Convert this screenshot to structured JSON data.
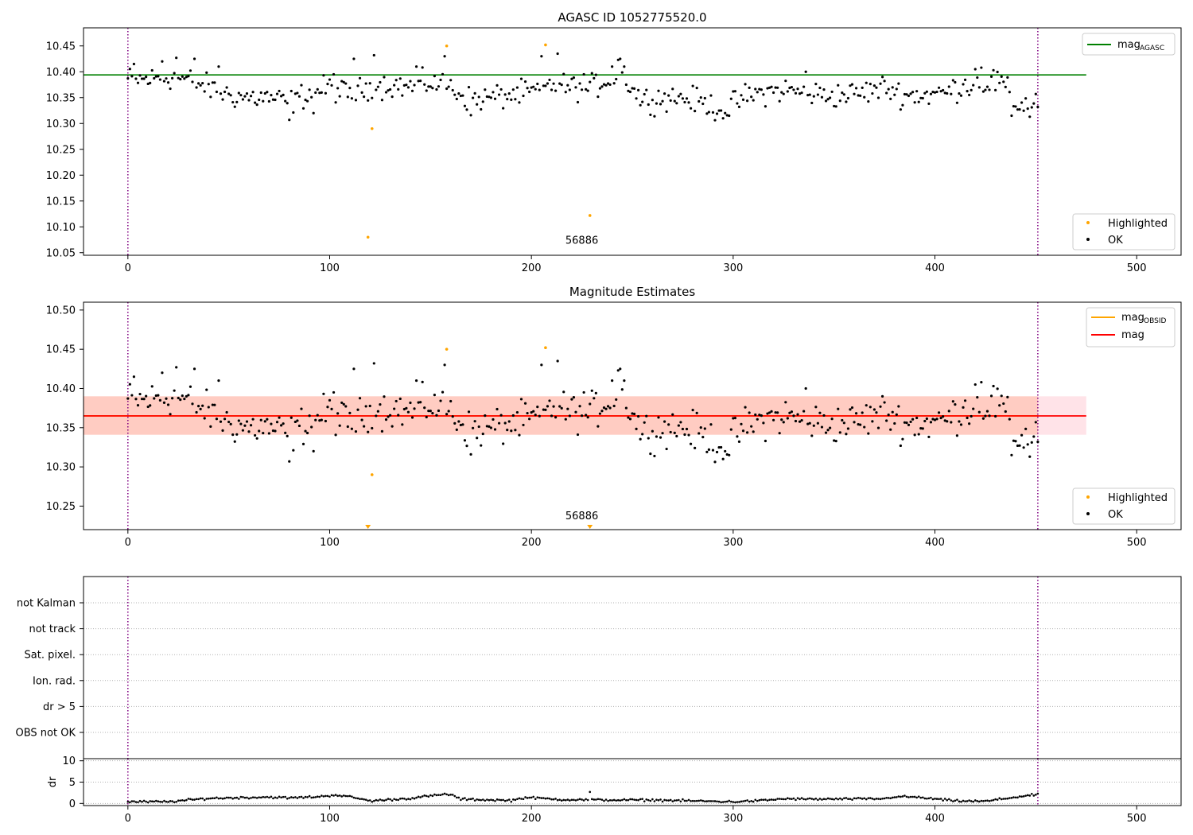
{
  "charts": [
    {
      "type": "scatter",
      "title": "AGASC ID 1052775520.0",
      "xlabel": "",
      "ylabel": "",
      "xlim": [
        -22,
        522
      ],
      "ylim": [
        10.045,
        10.485
      ],
      "xticks": [
        0,
        100,
        200,
        300,
        400,
        500
      ],
      "yticks": [
        10.05,
        10.1,
        10.15,
        10.2,
        10.25,
        10.3,
        10.35,
        10.4,
        10.45
      ],
      "ytick_labels": [
        "10.05",
        "10.10",
        "10.15",
        "10.20",
        "10.25",
        "10.30",
        "10.35",
        "10.40",
        "10.45"
      ],
      "vlines": [
        0,
        451
      ],
      "hlines": [
        {
          "y": 10.394,
          "x_end": 475,
          "color": "#008000",
          "name": "mag",
          "sub": "AGASC"
        }
      ],
      "annotation": {
        "text": "56886",
        "x": 225,
        "y": 10.055
      },
      "legend_top": {
        "placement": "top-right",
        "entries": [
          {
            "name": "mag",
            "sub": "AGASC",
            "color": "#008000"
          }
        ]
      },
      "legend_bottom": {
        "placement": "bottom-right",
        "entries": [
          {
            "name": "Highlighted",
            "color": "#ffa500"
          },
          {
            "name": "OK",
            "color": "#000000"
          }
        ]
      },
      "highlighted": [
        [
          119,
          10.08
        ],
        [
          121,
          10.29
        ],
        [
          158,
          10.45
        ],
        [
          207,
          10.452
        ],
        [
          229,
          10.122
        ]
      ],
      "highlighted_marker": "dot"
    },
    {
      "type": "scatter",
      "title": "Magnitude Estimates",
      "xlabel": "",
      "ylabel": "",
      "xlim": [
        -22,
        522
      ],
      "ylim": [
        10.22,
        10.51
      ],
      "xticks": [
        0,
        100,
        200,
        300,
        400,
        500
      ],
      "yticks": [
        10.25,
        10.3,
        10.35,
        10.4,
        10.45,
        10.5
      ],
      "ytick_labels": [
        "10.25",
        "10.30",
        "10.35",
        "10.40",
        "10.45",
        "10.50"
      ],
      "vlines": [
        0,
        451
      ],
      "bands": [
        {
          "y0": 10.341,
          "y1": 10.39,
          "x_end": 475,
          "color": "#ffc0cb",
          "opacity": 0.45
        },
        {
          "y0": 10.341,
          "y1": 10.39,
          "x_end": 451,
          "color": "#ffa07a",
          "opacity": 0.35
        }
      ],
      "hlines": [
        {
          "y": 10.365,
          "x_end": 451,
          "color": "#ffa500",
          "name": "mag",
          "sub": "OBSID"
        },
        {
          "y": 10.365,
          "x_end": 475,
          "color": "#ff0000",
          "name": "mag"
        }
      ],
      "annotation": {
        "text": "56886",
        "x": 225,
        "y": 10.229
      },
      "legend_top": {
        "placement": "top-right",
        "entries": [
          {
            "name": "mag",
            "sub": "OBSID",
            "color": "#ffa500"
          },
          {
            "name": "mag",
            "color": "#ff0000"
          }
        ]
      },
      "legend_bottom": {
        "placement": "bottom-right",
        "entries": [
          {
            "name": "Highlighted",
            "color": "#ffa500"
          },
          {
            "name": "OK",
            "color": "#000000"
          }
        ]
      },
      "highlighted": [
        [
          121,
          10.29
        ],
        [
          158,
          10.45
        ],
        [
          207,
          10.452
        ]
      ],
      "highlighted_offscale": [
        119,
        229
      ],
      "highlighted_marker": "dot"
    },
    {
      "type": "scatter",
      "title": "",
      "xlim": [
        -22,
        522
      ],
      "ylim": [
        0,
        7
      ],
      "categories": [
        "not Kalman",
        "not track",
        "Sat. pixel.",
        "Ion. rad.",
        "dr > 5",
        "OBS not OK"
      ],
      "vlines": [
        0,
        451
      ],
      "points": []
    },
    {
      "type": "scatter",
      "title": "",
      "xlabel": "",
      "ylabel": "dr",
      "xlim": [
        -22,
        522
      ],
      "ylim": [
        -0.5,
        10.5
      ],
      "xticks": [
        0,
        100,
        200,
        300,
        400,
        500
      ],
      "yticks": [
        0,
        5,
        10
      ],
      "ytick_labels": [
        "0",
        "5",
        "10"
      ],
      "vlines": [
        0,
        451
      ],
      "dr_outliers": [
        [
          229,
          2.7
        ],
        [
          157,
          2.3
        ],
        [
          103,
          2.0
        ]
      ]
    }
  ],
  "ok_series": {
    "n": 452,
    "knots": [
      [
        0,
        10.385
      ],
      [
        10,
        10.385
      ],
      [
        20,
        10.39
      ],
      [
        30,
        10.385
      ],
      [
        40,
        10.37
      ],
      [
        50,
        10.355
      ],
      [
        60,
        10.35
      ],
      [
        70,
        10.35
      ],
      [
        80,
        10.34
      ],
      [
        90,
        10.36
      ],
      [
        100,
        10.37
      ],
      [
        110,
        10.355
      ],
      [
        120,
        10.37
      ],
      [
        130,
        10.375
      ],
      [
        140,
        10.37
      ],
      [
        150,
        10.38
      ],
      [
        160,
        10.37
      ],
      [
        170,
        10.345
      ],
      [
        180,
        10.35
      ],
      [
        190,
        10.355
      ],
      [
        200,
        10.36
      ],
      [
        210,
        10.375
      ],
      [
        220,
        10.37
      ],
      [
        230,
        10.37
      ],
      [
        240,
        10.39
      ],
      [
        246,
        10.385
      ],
      [
        255,
        10.345
      ],
      [
        265,
        10.35
      ],
      [
        275,
        10.35
      ],
      [
        285,
        10.34
      ],
      [
        295,
        10.325
      ],
      [
        305,
        10.35
      ],
      [
        315,
        10.36
      ],
      [
        325,
        10.365
      ],
      [
        335,
        10.36
      ],
      [
        345,
        10.355
      ],
      [
        355,
        10.355
      ],
      [
        365,
        10.36
      ],
      [
        375,
        10.37
      ],
      [
        385,
        10.355
      ],
      [
        395,
        10.355
      ],
      [
        405,
        10.36
      ],
      [
        415,
        10.375
      ],
      [
        425,
        10.375
      ],
      [
        433,
        10.38
      ],
      [
        440,
        10.335
      ],
      [
        451,
        10.345
      ]
    ],
    "noise": 0.024,
    "overrides": [
      [
        3,
        10.415
      ],
      [
        17,
        10.42
      ],
      [
        24,
        10.427
      ],
      [
        33,
        10.425
      ],
      [
        45,
        10.41
      ],
      [
        80,
        10.307
      ],
      [
        92,
        10.32
      ],
      [
        102,
        10.395
      ],
      [
        112,
        10.425
      ],
      [
        122,
        10.432
      ],
      [
        143,
        10.41
      ],
      [
        157,
        10.43
      ],
      [
        170,
        10.316
      ],
      [
        205,
        10.43
      ],
      [
        213,
        10.435
      ],
      [
        226,
        10.395
      ],
      [
        240,
        10.41
      ],
      [
        243,
        10.423
      ],
      [
        244,
        10.425
      ],
      [
        246,
        10.41
      ],
      [
        295,
        10.31
      ],
      [
        298,
        10.315
      ],
      [
        336,
        10.4
      ],
      [
        420,
        10.405
      ],
      [
        423,
        10.408
      ],
      [
        429,
        10.403
      ],
      [
        438,
        10.315
      ],
      [
        447,
        10.313
      ]
    ]
  },
  "dr_series": {
    "knots": [
      [
        0,
        0.4
      ],
      [
        20,
        0.4
      ],
      [
        30,
        0.8
      ],
      [
        40,
        1.2
      ],
      [
        60,
        1.4
      ],
      [
        70,
        1.5
      ],
      [
        80,
        1.3
      ],
      [
        95,
        1.6
      ],
      [
        103,
        2.0
      ],
      [
        112,
        1.4
      ],
      [
        120,
        0.6
      ],
      [
        140,
        1.2
      ],
      [
        150,
        1.8
      ],
      [
        160,
        2.1
      ],
      [
        165,
        1.0
      ],
      [
        190,
        0.7
      ],
      [
        197,
        1.4
      ],
      [
        205,
        1.2
      ],
      [
        215,
        0.9
      ],
      [
        240,
        0.8
      ],
      [
        260,
        0.8
      ],
      [
        290,
        0.5
      ],
      [
        300,
        0.4
      ],
      [
        315,
        0.7
      ],
      [
        325,
        1.1
      ],
      [
        340,
        1.0
      ],
      [
        375,
        1.1
      ],
      [
        380,
        1.6
      ],
      [
        390,
        1.5
      ],
      [
        410,
        0.6
      ],
      [
        425,
        0.5
      ],
      [
        440,
        1.5
      ],
      [
        451,
        2.1
      ]
    ],
    "noise": 0.25
  }
}
